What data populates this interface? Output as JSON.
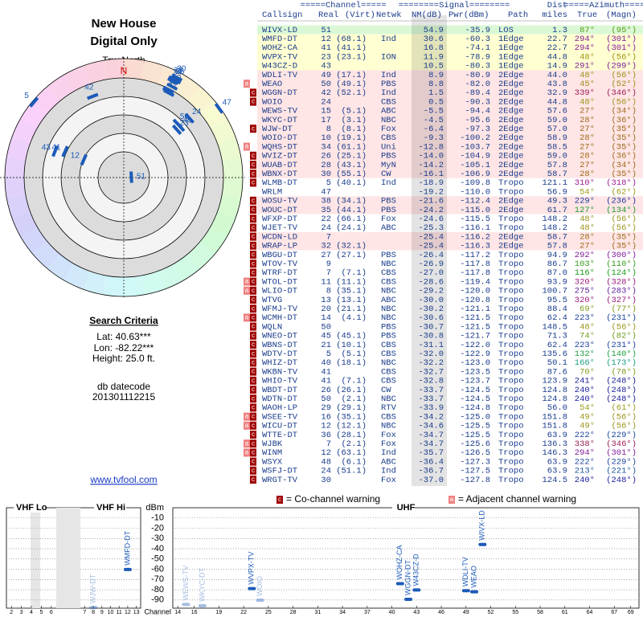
{
  "header": {
    "title": "New House",
    "subtitle": "Digital Only"
  },
  "polar": {
    "north_label": "TrueNorth",
    "n": "N",
    "rlim": [
      60,
      -20
    ]
  },
  "criteria": {
    "heading": "Search Criteria",
    "lat": "Lat: 40.63***",
    "lon": "Lon: -82.22***",
    "height": "Height: 25.0 ft.",
    "datecode_label": "db datecode",
    "datecode": "201301112215"
  },
  "link": "www.tvfool.com",
  "table": {
    "group_headers": [
      "=====Channel=====",
      "========Signal========",
      "Dist",
      "=====Azimuth====="
    ],
    "columns": [
      "Callsign",
      "Real",
      "(Virt)",
      "Netwk",
      "NM(dB)",
      "Pwr(dBm)",
      "Path",
      "miles",
      "True",
      "(Magn)"
    ],
    "row_colors": {
      "LOS": "#d6f7d0",
      "1Edge": "#ffffcc",
      "2Edge": "#ffe2e2",
      "Tropo": "#ffffff"
    },
    "rows": [
      {
        "callsign": "WIVX-LD",
        "real": "51",
        "nm": "54.9",
        "pwr": "-35.9",
        "path": "LOS",
        "dist": "1.3",
        "az_true": "87°",
        "az_magn": "(95°)"
      },
      {
        "callsign": "WMFD-DT",
        "real": "12",
        "virt": "(68.1)",
        "netwk": "Ind",
        "nm": "30.6",
        "pwr": "-60.3",
        "path": "1Edge",
        "dist": "22.7",
        "az_true": "294°",
        "az_magn": "(301°)"
      },
      {
        "callsign": "WOHZ-CA",
        "real": "41",
        "virt": "(41.1)",
        "nm": "16.8",
        "pwr": "-74.1",
        "path": "1Edge",
        "dist": "22.7",
        "az_true": "294°",
        "az_magn": "(301°)"
      },
      {
        "callsign": "WVPX-TV",
        "real": "23",
        "virt": "(23.1)",
        "netwk": "ION",
        "nm": "11.9",
        "pwr": "-78.9",
        "path": "1Edge",
        "dist": "44.8",
        "az_true": "48°",
        "az_magn": "(56°)"
      },
      {
        "callsign": "W43CZ-D",
        "real": "43",
        "nm": "10.5",
        "pwr": "-80.3",
        "path": "1Edge",
        "dist": "14.9",
        "az_true": "291°",
        "az_magn": "(299°)"
      },
      {
        "callsign": "WDLI-TV",
        "real": "49",
        "virt": "(17.1)",
        "netwk": "Ind",
        "nm": "8.9",
        "pwr": "-80.9",
        "path": "2Edge",
        "dist": "44.0",
        "az_true": "48°",
        "az_magn": "(56°)"
      },
      {
        "warn": [
          "a"
        ],
        "callsign": "WEAO",
        "real": "50",
        "virt": "(49.1)",
        "netwk": "PBS",
        "nm": "8.8",
        "pwr": "-82.0",
        "path": "2Edge",
        "dist": "43.8",
        "az_true": "45°",
        "az_magn": "(52°)"
      },
      {
        "warn": [
          "c"
        ],
        "callsign": "WGGN-DT",
        "real": "42",
        "virt": "(52.1)",
        "netwk": "Ind",
        "nm": "1.5",
        "pwr": "-89.4",
        "path": "2Edge",
        "dist": "32.9",
        "az_true": "339°",
        "az_magn": "(346°)"
      },
      {
        "warn": [
          "c"
        ],
        "callsign": "WOIO",
        "real": "24",
        "netwk": "CBS",
        "nm": "0.5",
        "pwr": "-90.3",
        "path": "2Edge",
        "dist": "44.8",
        "az_true": "48°",
        "az_magn": "(56°)"
      },
      {
        "callsign": "WEWS-TV",
        "real": "15",
        "virt": "(5.1)",
        "netwk": "ABC",
        "nm": "-5.5",
        "pwr": "-94.4",
        "path": "2Edge",
        "dist": "57.6",
        "az_true": "27°",
        "az_magn": "(34°)"
      },
      {
        "callsign": "WKYC-DT",
        "real": "17",
        "virt": "(3.1)",
        "netwk": "NBC",
        "nm": "-4.5",
        "pwr": "-95.6",
        "path": "2Edge",
        "dist": "59.0",
        "az_true": "28°",
        "az_magn": "(36°)"
      },
      {
        "warn": [
          "c"
        ],
        "callsign": "WJW-DT",
        "real": "8",
        "virt": "(8.1)",
        "netwk": "Fox",
        "nm": "-6.4",
        "pwr": "-97.3",
        "path": "2Edge",
        "dist": "57.0",
        "az_true": "27°",
        "az_magn": "(35°)"
      },
      {
        "callsign": "WOIO-DT",
        "real": "10",
        "virt": "(19.1)",
        "netwk": "CBS",
        "nm": "-9.3",
        "pwr": "-100.2",
        "path": "2Edge",
        "dist": "58.9",
        "az_true": "28°",
        "az_magn": "(35°)"
      },
      {
        "warn": [
          "a"
        ],
        "callsign": "WQHS-DT",
        "real": "34",
        "virt": "(61.1)",
        "netwk": "Uni",
        "nm": "-12.8",
        "pwr": "-103.7",
        "path": "2Edge",
        "dist": "58.5",
        "az_true": "27°",
        "az_magn": "(35°)"
      },
      {
        "warn": [
          "c"
        ],
        "callsign": "WVIZ-DT",
        "real": "26",
        "virt": "(25.1)",
        "netwk": "PBS",
        "nm": "-14.0",
        "pwr": "-104.9",
        "path": "2Edge",
        "dist": "59.0",
        "az_true": "28°",
        "az_magn": "(36°)"
      },
      {
        "warn": [
          "c"
        ],
        "callsign": "WUAB-DT",
        "real": "28",
        "virt": "(43.1)",
        "netwk": "MyN",
        "nm": "-14.2",
        "pwr": "-105.1",
        "path": "2Edge",
        "dist": "57.8",
        "az_true": "27°",
        "az_magn": "(34°)"
      },
      {
        "warn": [
          "c"
        ],
        "callsign": "WBNX-DT",
        "real": "30",
        "virt": "(55.1)",
        "netwk": "CW",
        "nm": "-16.1",
        "pwr": "-106.9",
        "path": "2Edge",
        "dist": "58.7",
        "az_true": "28°",
        "az_magn": "(35°)"
      },
      {
        "warn": [
          "c"
        ],
        "callsign": "WLMB-DT",
        "real": "5",
        "virt": "(40.1)",
        "netwk": "Ind",
        "nm": "-18.9",
        "pwr": "-109.8",
        "path": "Tropo",
        "dist": "121.1",
        "az_true": "310°",
        "az_magn": "(318°)"
      },
      {
        "callsign": "WRLM",
        "real": "47",
        "nm": "-19.2",
        "pwr": "-110.0",
        "path": "Tropo",
        "dist": "56.9",
        "az_true": "54°",
        "az_magn": "(62°)"
      },
      {
        "warn": [
          "c"
        ],
        "callsign": "WOSU-TV",
        "real": "38",
        "virt": "(34.1)",
        "netwk": "PBS",
        "nm": "-21.6",
        "pwr": "-112.4",
        "path": "2Edge",
        "dist": "49.3",
        "az_true": "229°",
        "az_magn": "(236°)"
      },
      {
        "warn": [
          "c"
        ],
        "callsign": "WOUC-DT",
        "real": "35",
        "virt": "(44.1)",
        "netwk": "PBS",
        "nm": "-24.2",
        "pwr": "-115.0",
        "path": "2Edge",
        "dist": "61.7",
        "az_true": "127°",
        "az_magn": "(134°)"
      },
      {
        "warn": [
          "c"
        ],
        "callsign": "WFXP-DT",
        "real": "22",
        "virt": "(66.1)",
        "netwk": "Fox",
        "nm": "-24.6",
        "pwr": "-115.5",
        "path": "Tropo",
        "dist": "148.2",
        "az_true": "48°",
        "az_magn": "(56°)"
      },
      {
        "warn": [
          "c"
        ],
        "callsign": "WJET-TV",
        "real": "24",
        "virt": "(24.1)",
        "netwk": "ABC",
        "nm": "-25.3",
        "pwr": "-116.1",
        "path": "Tropo",
        "dist": "148.2",
        "az_true": "48°",
        "az_magn": "(56°)"
      },
      {
        "warn": [
          "c"
        ],
        "callsign": "WCDN-LD",
        "real": "7",
        "nm": "-25.4",
        "pwr": "-116.2",
        "path": "2Edge",
        "dist": "58.7",
        "az_true": "28°",
        "az_magn": "(35°)"
      },
      {
        "warn": [
          "c"
        ],
        "callsign": "WRAP-LP",
        "real": "32",
        "virt": "(32.1)",
        "nm": "-25.4",
        "pwr": "-116.3",
        "path": "2Edge",
        "dist": "57.8",
        "az_true": "27°",
        "az_magn": "(35°)"
      },
      {
        "warn": [
          "c"
        ],
        "callsign": "WBGU-DT",
        "real": "27",
        "virt": "(27.1)",
        "netwk": "PBS",
        "nm": "-26.4",
        "pwr": "-117.2",
        "path": "Tropo",
        "dist": "94.9",
        "az_true": "292°",
        "az_magn": "(300°)"
      },
      {
        "warn": [
          "c"
        ],
        "callsign": "WTOV-TV",
        "real": "9",
        "netwk": "NBC",
        "nm": "-26.9",
        "pwr": "-117.8",
        "path": "Tropo",
        "dist": "86.7",
        "az_true": "103°",
        "az_magn": "(110°)"
      },
      {
        "warn": [
          "c"
        ],
        "callsign": "WTRF-DT",
        "real": "7",
        "virt": "(7.1)",
        "netwk": "CBS",
        "nm": "-27.0",
        "pwr": "-117.8",
        "path": "Tropo",
        "dist": "87.0",
        "az_true": "116°",
        "az_magn": "(124°)"
      },
      {
        "warn": [
          "a",
          "c"
        ],
        "callsign": "WTOL-DT",
        "real": "11",
        "virt": "(11.1)",
        "netwk": "CBS",
        "nm": "-28.6",
        "pwr": "-119.4",
        "path": "Tropo",
        "dist": "93.9",
        "az_true": "320°",
        "az_magn": "(328°)"
      },
      {
        "warn": [
          "a",
          "c"
        ],
        "callsign": "WLIO-DT",
        "real": "8",
        "virt": "(35.1)",
        "netwk": "NBC",
        "nm": "-29.2",
        "pwr": "-120.0",
        "path": "Tropo",
        "dist": "100.7",
        "az_true": "275°",
        "az_magn": "(283°)"
      },
      {
        "warn": [
          "c"
        ],
        "callsign": "WTVG",
        "real": "13",
        "virt": "(13.1)",
        "netwk": "ABC",
        "nm": "-30.0",
        "pwr": "-120.8",
        "path": "Tropo",
        "dist": "95.5",
        "az_true": "320°",
        "az_magn": "(327°)"
      },
      {
        "warn": [
          "c"
        ],
        "callsign": "WFMJ-TV",
        "real": "20",
        "virt": "(21.1)",
        "netwk": "NBC",
        "nm": "-30.2",
        "pwr": "-121.1",
        "path": "Tropo",
        "dist": "88.4",
        "az_true": "69°",
        "az_magn": "(77°)"
      },
      {
        "warn": [
          "a",
          "c"
        ],
        "callsign": "WCMH-DT",
        "real": "14",
        "virt": "(4.1)",
        "netwk": "NBC",
        "nm": "-30.6",
        "pwr": "-121.5",
        "path": "Tropo",
        "dist": "62.4",
        "az_true": "223°",
        "az_magn": "(231°)"
      },
      {
        "warn": [
          "c"
        ],
        "callsign": "WQLN",
        "real": "50",
        "netwk": "PBS",
        "nm": "-30.7",
        "pwr": "-121.5",
        "path": "Tropo",
        "dist": "148.5",
        "az_true": "48°",
        "az_magn": "(56°)"
      },
      {
        "warn": [
          "c"
        ],
        "callsign": "WNEO-DT",
        "real": "45",
        "virt": "(45.1)",
        "netwk": "PBS",
        "nm": "-30.8",
        "pwr": "-121.7",
        "path": "Tropo",
        "dist": "71.3",
        "az_true": "74°",
        "az_magn": "(82°)"
      },
      {
        "warn": [
          "c"
        ],
        "callsign": "WBNS-DT",
        "real": "21",
        "virt": "(10.1)",
        "netwk": "CBS",
        "nm": "-31.1",
        "pwr": "-122.0",
        "path": "Tropo",
        "dist": "62.4",
        "az_true": "223°",
        "az_magn": "(231°)"
      },
      {
        "warn": [
          "c"
        ],
        "callsign": "WDTV-DT",
        "real": "5",
        "virt": "(5.1)",
        "netwk": "CBS",
        "nm": "-32.0",
        "pwr": "-122.9",
        "path": "Tropo",
        "dist": "135.6",
        "az_true": "132°",
        "az_magn": "(140°)"
      },
      {
        "warn": [
          "c"
        ],
        "callsign": "WHIZ-DT",
        "real": "40",
        "virt": "(18.1)",
        "netwk": "NBC",
        "nm": "-32.2",
        "pwr": "-123.0",
        "path": "Tropo",
        "dist": "50.1",
        "az_true": "166°",
        "az_magn": "(173°)"
      },
      {
        "warn": [
          "c"
        ],
        "callsign": "WKBN-TV",
        "real": "41",
        "netwk": "CBS",
        "nm": "-32.7",
        "pwr": "-123.5",
        "path": "Tropo",
        "dist": "87.6",
        "az_true": "70°",
        "az_magn": "(78°)"
      },
      {
        "warn": [
          "c"
        ],
        "callsign": "WHIO-TV",
        "real": "41",
        "virt": "(7.1)",
        "netwk": "CBS",
        "nm": "-32.8",
        "pwr": "-123.7",
        "path": "Tropo",
        "dist": "123.9",
        "az_true": "241°",
        "az_magn": "(248°)"
      },
      {
        "warn": [
          "c"
        ],
        "callsign": "WBDT-DT",
        "real": "26",
        "virt": "(26.1)",
        "netwk": "CW",
        "nm": "-33.7",
        "pwr": "-124.5",
        "path": "Tropo",
        "dist": "124.8",
        "az_true": "240°",
        "az_magn": "(248°)"
      },
      {
        "warn": [
          "c"
        ],
        "callsign": "WDTN-DT",
        "real": "50",
        "virt": "(2.1)",
        "netwk": "NBC",
        "nm": "-33.7",
        "pwr": "-124.5",
        "path": "Tropo",
        "dist": "124.8",
        "az_true": "240°",
        "az_magn": "(248°)"
      },
      {
        "warn": [
          "c"
        ],
        "callsign": "WAOH-LP",
        "real": "29",
        "virt": "(29.1)",
        "netwk": "RTV",
        "nm": "-33.9",
        "pwr": "-124.8",
        "path": "Tropo",
        "dist": "56.0",
        "az_true": "54°",
        "az_magn": "(61°)"
      },
      {
        "warn": [
          "a",
          "c"
        ],
        "callsign": "WSEE-TV",
        "real": "16",
        "virt": "(35.1)",
        "netwk": "CBS",
        "nm": "-34.2",
        "pwr": "-125.0",
        "path": "Tropo",
        "dist": "151.8",
        "az_true": "49°",
        "az_magn": "(56°)"
      },
      {
        "warn": [
          "a",
          "c"
        ],
        "callsign": "WICU-DT",
        "real": "12",
        "virt": "(12.1)",
        "netwk": "NBC",
        "nm": "-34.6",
        "pwr": "-125.5",
        "path": "Tropo",
        "dist": "151.8",
        "az_true": "49°",
        "az_magn": "(56°)"
      },
      {
        "warn": [
          "c"
        ],
        "callsign": "WTTE-DT",
        "real": "36",
        "virt": "(28.1)",
        "netwk": "Fox",
        "nm": "-34.7",
        "pwr": "-125.5",
        "path": "Tropo",
        "dist": "63.9",
        "az_true": "222°",
        "az_magn": "(229°)"
      },
      {
        "warn": [
          "a",
          "c"
        ],
        "callsign": "WJBK",
        "real": "7",
        "virt": "(2.1)",
        "netwk": "Fox",
        "nm": "-34.7",
        "pwr": "-125.6",
        "path": "Tropo",
        "dist": "136.3",
        "az_true": "338°",
        "az_magn": "(346°)"
      },
      {
        "warn": [
          "a",
          "c"
        ],
        "callsign": "WINM",
        "real": "12",
        "virt": "(63.1)",
        "netwk": "Ind",
        "nm": "-35.7",
        "pwr": "-126.5",
        "path": "Tropo",
        "dist": "146.3",
        "az_true": "294°",
        "az_magn": "(301°)"
      },
      {
        "warn": [
          "c"
        ],
        "callsign": "WSYX",
        "real": "48",
        "virt": "(6.1)",
        "netwk": "ABC",
        "nm": "-36.4",
        "pwr": "-127.3",
        "path": "Tropo",
        "dist": "63.9",
        "az_true": "222°",
        "az_magn": "(229°)"
      },
      {
        "warn": [
          "c"
        ],
        "callsign": "WSFJ-DT",
        "real": "24",
        "virt": "(51.1)",
        "netwk": "Ind",
        "nm": "-36.7",
        "pwr": "-127.5",
        "path": "Tropo",
        "dist": "63.9",
        "az_true": "213°",
        "az_magn": "(221°)"
      },
      {
        "warn": [
          "c"
        ],
        "callsign": "WRGT-TV",
        "real": "30",
        "netwk": "Fox",
        "nm": "-37.0",
        "pwr": "-127.8",
        "path": "Tropo",
        "dist": "124.5",
        "az_true": "240°",
        "az_magn": "(248°)"
      }
    ]
  },
  "legend": {
    "co": {
      "icon": "c",
      "text": "= Co-channel warning",
      "color": "#a00000"
    },
    "adjacent": {
      "icon": "a",
      "text": "= Adjacent channel warning",
      "color": "#f08080"
    }
  },
  "spectrum": {
    "y_label": "dBm",
    "ylim": [
      -98,
      0
    ],
    "yticks": [
      -10,
      -20,
      -30,
      -40,
      -50,
      -60,
      -70,
      -80,
      -90
    ],
    "color": "#1c5bb8",
    "panels": [
      {
        "title": "VHF Lo",
        "xlim": [
          1.5,
          6.5
        ],
        "xticks": [
          2,
          3,
          4,
          5,
          6
        ]
      },
      {
        "title": "VHF Hi",
        "xlim": [
          6.5,
          13.5
        ],
        "xticks": [
          7,
          8,
          9,
          10,
          11,
          12,
          13
        ]
      },
      {
        "title": "UHF",
        "x_label": "Channel",
        "xlim": [
          13.4,
          70
        ],
        "xticks": [
          14,
          16,
          19,
          22,
          25,
          28,
          31,
          34,
          37,
          40,
          43,
          46,
          49,
          52,
          55,
          58,
          61,
          64,
          67,
          69
        ]
      }
    ]
  }
}
